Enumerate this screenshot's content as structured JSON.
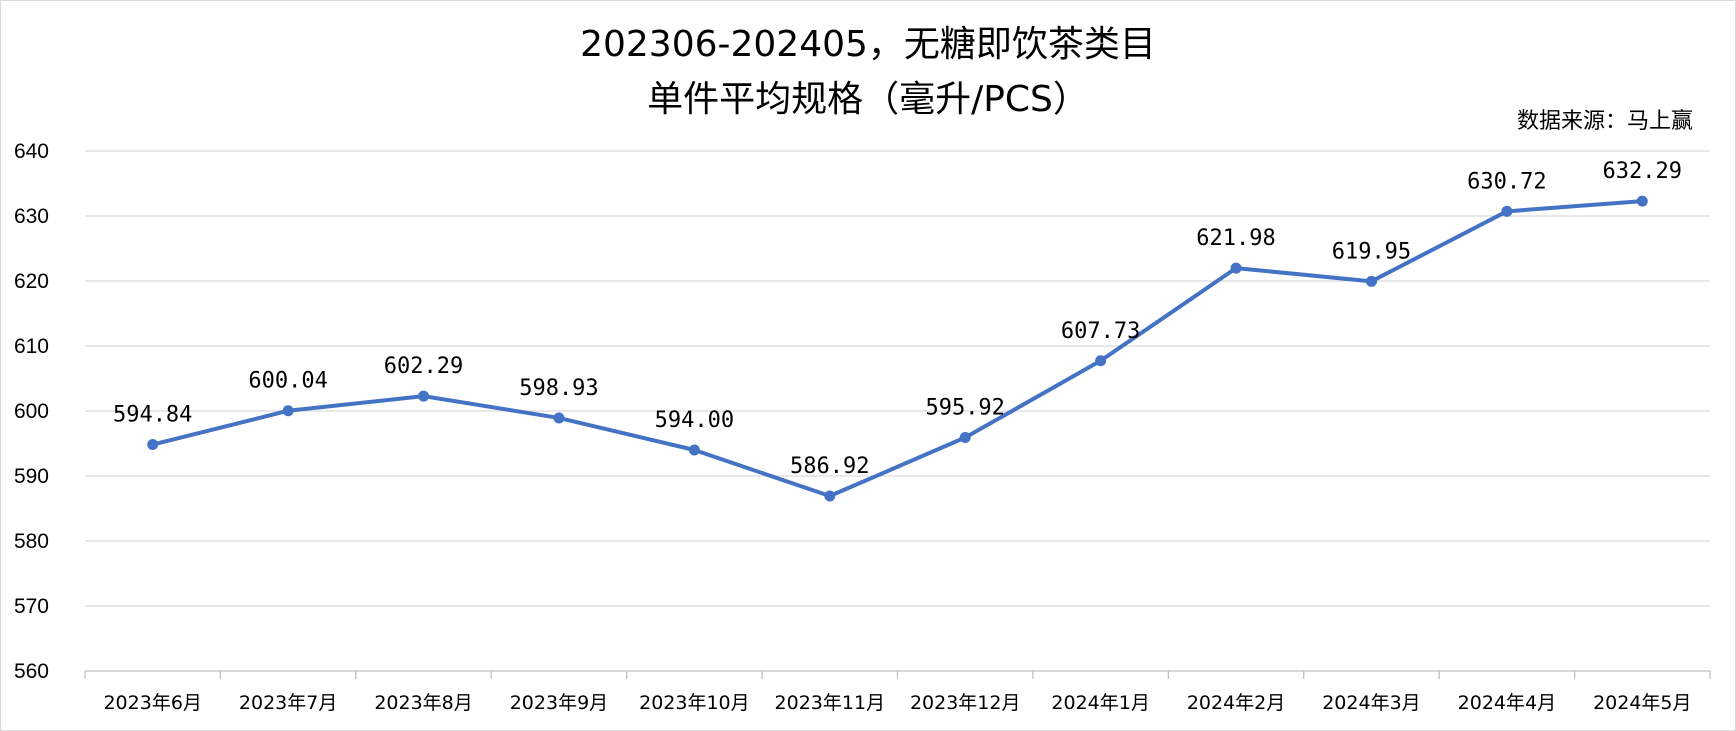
{
  "chart_data": {
    "type": "line",
    "title": [
      "202306-202405，无糖即饮茶类目",
      "单件平均规格（毫升/PCS）"
    ],
    "source": "数据来源：马上赢",
    "categories": [
      "2023年6月",
      "2023年7月",
      "2023年8月",
      "2023年9月",
      "2023年10月",
      "2023年11月",
      "2023年12月",
      "2024年1月",
      "2024年2月",
      "2024年3月",
      "2024年4月",
      "2024年5月"
    ],
    "values": [
      594.84,
      600.04,
      602.29,
      598.93,
      594.0,
      586.92,
      595.92,
      607.73,
      621.98,
      619.95,
      630.72,
      632.29
    ],
    "labels": [
      "594.84",
      "600.04",
      "602.29",
      "598.93",
      "594.00",
      "586.92",
      "595.92",
      "607.73",
      "621.98",
      "619.95",
      "630.72",
      "632.29"
    ],
    "ylim": [
      560,
      640
    ],
    "yticks": [
      560,
      570,
      580,
      590,
      600,
      610,
      620,
      630,
      640
    ],
    "grid": true,
    "colors": {
      "line": "#4472c4",
      "grid": "#d9d9d9"
    }
  }
}
